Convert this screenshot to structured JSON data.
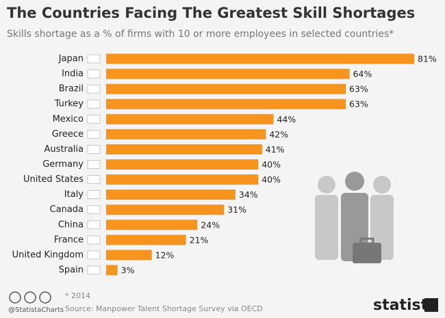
{
  "chart_data": {
    "type": "bar",
    "orientation": "horizontal",
    "title": "The Countries Facing The Greatest Skill Shortages",
    "subtitle": "Skills shortage as a % of firms with 10 or more employees in selected countries*",
    "categories": [
      "Japan",
      "India",
      "Brazil",
      "Turkey",
      "Mexico",
      "Greece",
      "Australia",
      "Germany",
      "United States",
      "Italy",
      "Canada",
      "China",
      "France",
      "United Kingdom",
      "Spain"
    ],
    "values": [
      81,
      64,
      63,
      63,
      44,
      42,
      41,
      40,
      40,
      34,
      31,
      24,
      21,
      12,
      3
    ],
    "value_labels": [
      "81%",
      "64%",
      "63%",
      "63%",
      "44%",
      "42%",
      "41%",
      "40%",
      "40%",
      "34%",
      "31%",
      "24%",
      "21%",
      "12%",
      "3%"
    ],
    "color": "#f7941d",
    "footnote": "* 2014",
    "source": "Source: Manpower Talent Shortage Survey via OECD",
    "credit": "@StatistaCharts",
    "logo": "statista"
  }
}
